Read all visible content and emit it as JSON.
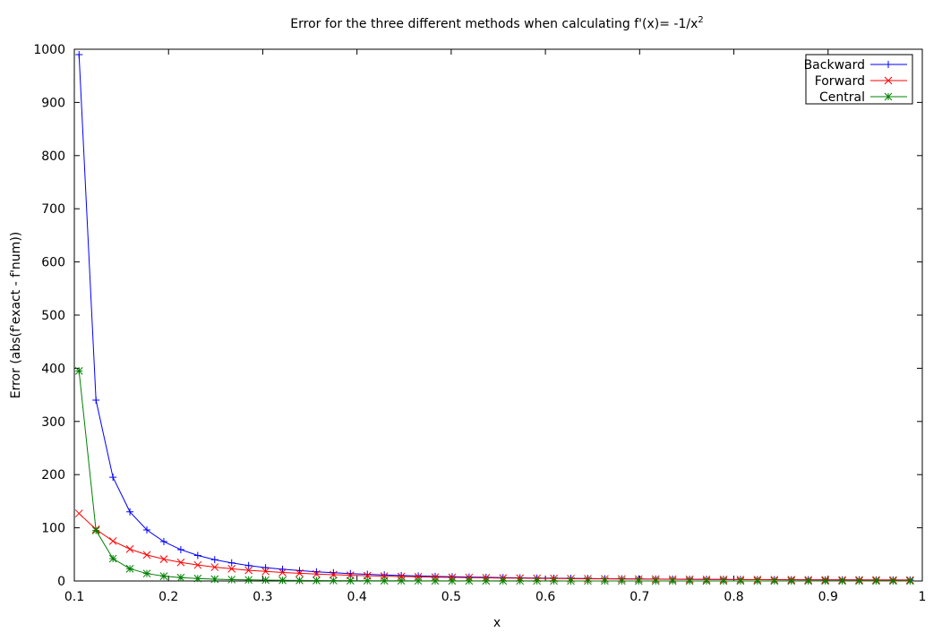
{
  "chart_data": {
    "type": "line",
    "title": "Error for the three different methods when calculating f'(x)= -1/x",
    "title_superscript": "2",
    "xlabel": "x",
    "ylabel": "Error (abs(f'exact - f'num))",
    "xlim": [
      0.1,
      1.0
    ],
    "ylim": [
      0,
      1000
    ],
    "xticks": [
      "0.1",
      "0.2",
      "0.3",
      "0.4",
      "0.5",
      "0.6",
      "0.7",
      "0.8",
      "0.9",
      "1"
    ],
    "yticks": [
      "0",
      "100",
      "200",
      "300",
      "400",
      "500",
      "600",
      "700",
      "800",
      "900",
      "1000"
    ],
    "grid": false,
    "legend_position": "top-right",
    "x": [
      0.105,
      0.123,
      0.141,
      0.159,
      0.177,
      0.195,
      0.213,
      0.231,
      0.249,
      0.267,
      0.285,
      0.303,
      0.321,
      0.339,
      0.357,
      0.375,
      0.393,
      0.411,
      0.429,
      0.447,
      0.465,
      0.483,
      0.501,
      0.519,
      0.537,
      0.555,
      0.573,
      0.591,
      0.609,
      0.627,
      0.645,
      0.663,
      0.681,
      0.699,
      0.717,
      0.735,
      0.753,
      0.771,
      0.789,
      0.807,
      0.825,
      0.843,
      0.861,
      0.879,
      0.897,
      0.915,
      0.933,
      0.951,
      0.969,
      0.987
    ],
    "series": [
      {
        "name": "Backward",
        "color": "#0000ff",
        "marker": "plus",
        "values": [
          990,
          340,
          195,
          130,
          96,
          74,
          59,
          48,
          40,
          34,
          29,
          25,
          22,
          19.5,
          17.3,
          15.5,
          13.9,
          12.6,
          11.4,
          10.4,
          9.5,
          8.7,
          8.0,
          7.4,
          6.9,
          6.4,
          5.9,
          5.5,
          5.2,
          4.9,
          4.6,
          4.3,
          4.0,
          3.8,
          3.6,
          3.4,
          3.2,
          3.1,
          2.9,
          2.8,
          2.6,
          2.5,
          2.4,
          2.3,
          2.2,
          2.1,
          2.0,
          1.9,
          1.85,
          1.8
        ]
      },
      {
        "name": "Forward",
        "color": "#ff0000",
        "marker": "cross",
        "values": [
          127,
          97,
          75,
          60,
          49,
          41,
          35,
          30,
          26,
          23,
          20,
          18,
          16,
          14.5,
          13,
          11.8,
          10.8,
          9.9,
          9.1,
          8.4,
          7.8,
          7.2,
          6.7,
          6.3,
          5.9,
          5.5,
          5.2,
          4.9,
          4.6,
          4.3,
          4.1,
          3.9,
          3.7,
          3.5,
          3.3,
          3.1,
          3.0,
          2.8,
          2.7,
          2.6,
          2.5,
          2.4,
          2.3,
          2.2,
          2.1,
          2.0,
          1.9,
          1.85,
          1.8,
          1.7
        ]
      },
      {
        "name": "Central",
        "color": "#008000",
        "marker": "star",
        "values": [
          395,
          95,
          42,
          23,
          14,
          9,
          6.3,
          4.6,
          3.4,
          2.6,
          2.0,
          1.6,
          1.3,
          1.05,
          0.86,
          0.71,
          0.59,
          0.5,
          0.42,
          0.36,
          0.31,
          0.27,
          0.23,
          0.2,
          0.18,
          0.16,
          0.14,
          0.12,
          0.11,
          0.1,
          0.09,
          0.08,
          0.07,
          0.065,
          0.06,
          0.055,
          0.05,
          0.045,
          0.04,
          0.037,
          0.034,
          0.031,
          0.029,
          0.027,
          0.025,
          0.023,
          0.021,
          0.02,
          0.019,
          0.018
        ]
      }
    ]
  }
}
